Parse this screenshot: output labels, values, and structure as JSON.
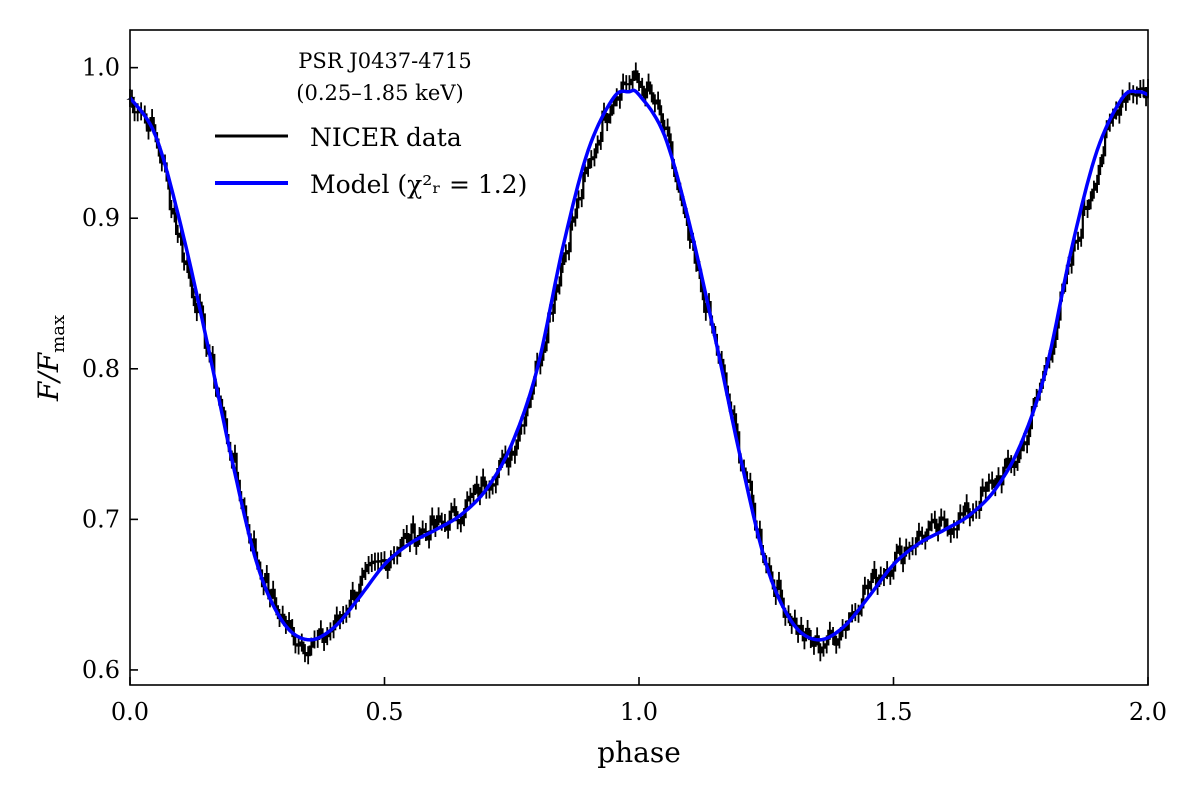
{
  "chart_data": {
    "type": "line",
    "title": "",
    "xlabel": "phase",
    "ylabel": "F/F_max",
    "ylabel_parts": {
      "main": "F/F",
      "sub": "max"
    },
    "xlim": [
      0.0,
      2.0
    ],
    "ylim": [
      0.59,
      1.025
    ],
    "xticks": [
      0.0,
      0.5,
      1.0,
      1.5,
      2.0
    ],
    "xtick_labels": [
      "0.0",
      "0.5",
      "1.0",
      "1.5",
      "2.0"
    ],
    "yticks": [
      0.6,
      0.7,
      0.8,
      0.9,
      1.0
    ],
    "ytick_labels": [
      "0.6",
      "0.7",
      "0.8",
      "0.9",
      "1.0"
    ],
    "grid": false,
    "legend": {
      "position": "top-left",
      "title_line1": "PSR J0437-4715",
      "title_line2": "(0.25–1.85 keV)",
      "entries": [
        {
          "label": "NICER data",
          "color": "#000000"
        },
        {
          "label": "Model (χ²ᵣ = 1.2)",
          "color": "#0000ff"
        }
      ]
    },
    "series": [
      {
        "name": "NICER data",
        "style": "steps-with-errorbars",
        "color": "#000000",
        "x": [
          0.0,
          0.05,
          0.1,
          0.15,
          0.2,
          0.25,
          0.3,
          0.35,
          0.4,
          0.45,
          0.5,
          0.55,
          0.6,
          0.65,
          0.7,
          0.75,
          0.8,
          0.85,
          0.9,
          0.95,
          1.0,
          1.05,
          1.1,
          1.15,
          1.2,
          1.25,
          1.3,
          1.35,
          1.4,
          1.45,
          1.5,
          1.55,
          1.6,
          1.65,
          1.7,
          1.75,
          1.8,
          1.85,
          1.9,
          1.95,
          2.0
        ],
        "y": [
          0.98,
          0.955,
          0.885,
          0.82,
          0.745,
          0.675,
          0.635,
          0.617,
          0.628,
          0.655,
          0.672,
          0.688,
          0.695,
          0.705,
          0.725,
          0.745,
          0.8,
          0.87,
          0.93,
          0.98,
          0.99,
          0.96,
          0.885,
          0.82,
          0.745,
          0.675,
          0.635,
          0.617,
          0.628,
          0.655,
          0.672,
          0.688,
          0.695,
          0.705,
          0.725,
          0.745,
          0.8,
          0.87,
          0.93,
          0.98,
          0.985
        ],
        "yerr": 0.006
      },
      {
        "name": "Model (χ²ᵣ = 1.2)",
        "style": "smooth-line",
        "color": "#0000ff",
        "x": [
          0.0,
          0.05,
          0.1,
          0.15,
          0.2,
          0.25,
          0.3,
          0.35,
          0.4,
          0.45,
          0.5,
          0.55,
          0.6,
          0.65,
          0.7,
          0.75,
          0.8,
          0.85,
          0.9,
          0.95,
          0.98,
          1.0,
          1.05,
          1.1,
          1.15,
          1.2,
          1.25,
          1.3,
          1.35,
          1.4,
          1.45,
          1.5,
          1.55,
          1.6,
          1.65,
          1.7,
          1.75,
          1.8,
          1.85,
          1.9,
          1.95,
          1.98,
          2.0
        ],
        "y": [
          0.98,
          0.955,
          0.895,
          0.82,
          0.74,
          0.67,
          0.632,
          0.62,
          0.628,
          0.648,
          0.67,
          0.684,
          0.693,
          0.703,
          0.72,
          0.75,
          0.8,
          0.88,
          0.945,
          0.98,
          0.984,
          0.982,
          0.955,
          0.895,
          0.82,
          0.74,
          0.67,
          0.632,
          0.62,
          0.628,
          0.648,
          0.67,
          0.684,
          0.693,
          0.703,
          0.72,
          0.75,
          0.8,
          0.88,
          0.945,
          0.98,
          0.984,
          0.982
        ]
      }
    ]
  }
}
